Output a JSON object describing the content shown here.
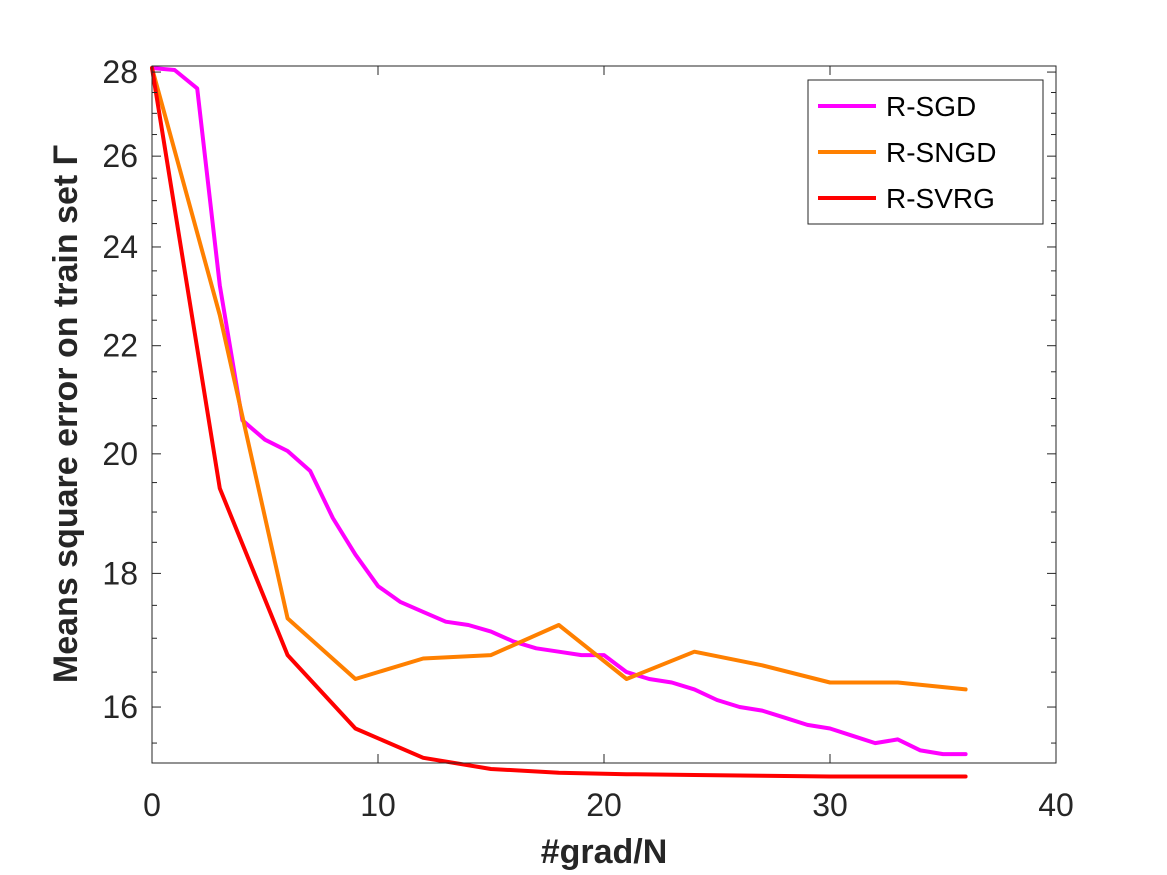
{
  "chart_data": {
    "type": "line",
    "title": "",
    "xlabel": "#grad/N",
    "ylabel": "Means square error on train set Γ",
    "xlim": [
      0,
      40
    ],
    "ylim": [
      15.23,
      28.15
    ],
    "y_scale": "log",
    "xticks": [
      0,
      10,
      20,
      30,
      40
    ],
    "xtick_labels": [
      "0",
      "10",
      "20",
      "30",
      "40"
    ],
    "yticks": [
      16,
      18,
      20,
      22,
      24,
      26,
      28
    ],
    "ytick_labels": [
      "16",
      "18",
      "20",
      "22",
      "24",
      "26",
      "28"
    ],
    "grid": false,
    "legend_position": "top-right",
    "series": [
      {
        "name": "R-SGD",
        "color": "#ff00ff",
        "x": [
          0,
          1,
          2,
          3,
          4,
          5,
          6,
          7,
          8,
          9,
          10,
          11,
          12,
          13,
          14,
          15,
          16,
          17,
          18,
          19,
          20,
          21,
          22,
          23,
          24,
          25,
          26,
          27,
          28,
          29,
          30,
          31,
          32,
          33,
          34,
          35,
          36
        ],
        "values": [
          28.1,
          28.05,
          27.6,
          23.2,
          20.6,
          20.25,
          20.05,
          19.7,
          18.9,
          18.3,
          17.8,
          17.55,
          17.4,
          17.25,
          17.2,
          17.1,
          16.95,
          16.85,
          16.8,
          16.75,
          16.75,
          16.5,
          16.4,
          16.35,
          16.25,
          16.1,
          16.0,
          15.95,
          15.85,
          15.75,
          15.7,
          15.6,
          15.5,
          15.55,
          15.4,
          15.35,
          15.35
        ]
      },
      {
        "name": "R-SNGD",
        "color": "#ff8000",
        "x": [
          0,
          3,
          6,
          9,
          12,
          15,
          18,
          21,
          24,
          27,
          30,
          33,
          36
        ],
        "values": [
          28.1,
          22.6,
          17.3,
          16.4,
          16.7,
          16.75,
          17.2,
          16.4,
          16.8,
          16.6,
          16.35,
          16.35,
          16.25
        ]
      },
      {
        "name": "R-SVRG",
        "color": "#ff0000",
        "x": [
          0,
          3,
          6,
          9,
          12,
          15,
          18,
          21,
          24,
          27,
          30,
          33,
          36
        ],
        "values": [
          28.1,
          19.4,
          16.75,
          15.7,
          15.3,
          15.15,
          15.1,
          15.08,
          15.07,
          15.06,
          15.05,
          15.05,
          15.05
        ]
      }
    ]
  }
}
